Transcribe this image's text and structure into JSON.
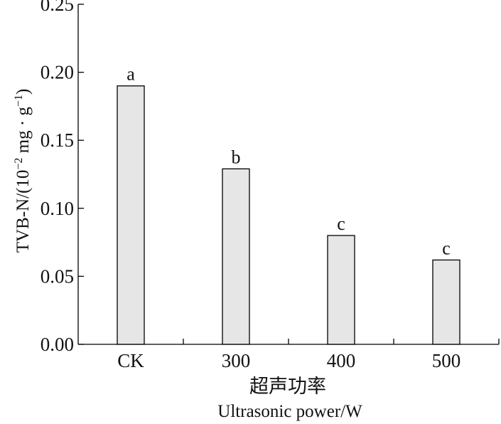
{
  "chart_data": {
    "type": "bar",
    "categories": [
      "CK",
      "300",
      "400",
      "500"
    ],
    "values": [
      0.19,
      0.129,
      0.08,
      0.062
    ],
    "significance": [
      "a",
      "b",
      "c",
      "c"
    ],
    "ylim": [
      0,
      0.25
    ],
    "yticks": [
      "0.00",
      "0.05",
      "0.10",
      "0.15",
      "0.20",
      "0.25"
    ],
    "ylabel_main": "TVB-N/(10",
    "ylabel_sup1": "−2",
    "ylabel_mid": " mg · g",
    "ylabel_sup2": "−1",
    "ylabel_end": ")",
    "xlabel_cn": "超声功率",
    "xlabel_en": "Ultrasonic power/W",
    "grid": false,
    "bar_color": "#e6e6e6"
  }
}
